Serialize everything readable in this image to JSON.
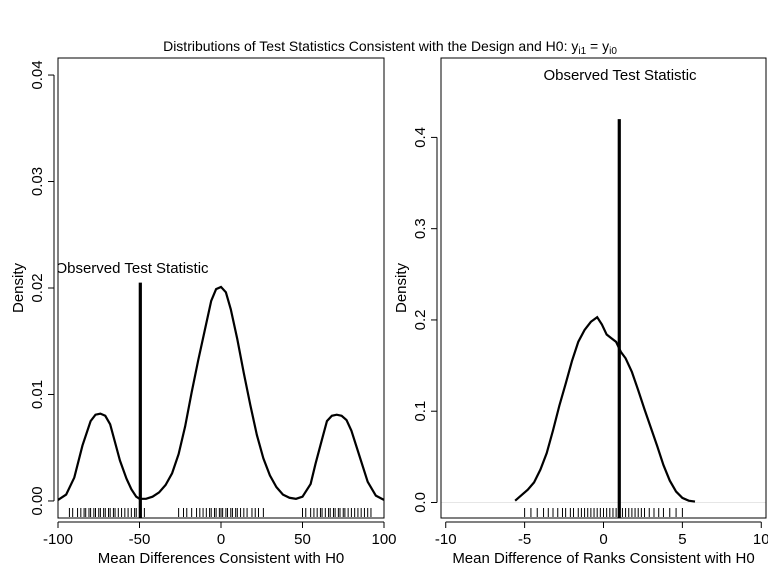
{
  "figure": {
    "title": "Distributions of Test Statistics Consistent with the Design and H0",
    "title_math": {
      "sep": ": y",
      "sub1": "i1",
      "eq": " = y",
      "sub2": "i0"
    }
  },
  "chart_data": [
    {
      "type": "line",
      "ylabel": "Density",
      "xlabel": "Mean Differences Consistent with H0",
      "xlim": [
        -100,
        100
      ],
      "ylim": [
        -0.0016,
        0.0416
      ],
      "xticks": [
        -100,
        -50,
        0,
        50,
        100
      ],
      "xtick_labels": [
        "-100",
        "-50",
        "0",
        "50",
        "100"
      ],
      "yticks": [
        0.0,
        0.01,
        0.02,
        0.03,
        0.04
      ],
      "ytick_labels": [
        "0.00",
        "0.01",
        "0.02",
        "0.03",
        "0.04"
      ],
      "grid": false,
      "series": [
        {
          "x": [
            -100,
            -95,
            -90,
            -85,
            -80,
            -77,
            -74,
            -71,
            -68,
            -65,
            -62,
            -58,
            -55,
            -52,
            -50,
            -46,
            -42,
            -38,
            -34,
            -30,
            -26,
            -22,
            -18,
            -14,
            -10,
            -6,
            -3,
            0,
            3,
            6,
            10,
            14,
            18,
            22,
            26,
            30,
            34,
            38,
            42,
            46,
            50,
            55,
            58,
            62,
            65,
            68,
            71,
            74,
            77,
            80,
            85,
            90,
            95,
            100
          ],
          "y": [
            0.0001,
            0.0006,
            0.0022,
            0.0052,
            0.0075,
            0.0081,
            0.0082,
            0.008,
            0.0072,
            0.0055,
            0.0038,
            0.0021,
            0.0011,
            0.0004,
            0.0002,
            0.0002,
            0.0004,
            0.0008,
            0.0015,
            0.0026,
            0.0044,
            0.007,
            0.0102,
            0.0132,
            0.016,
            0.0188,
            0.0199,
            0.0201,
            0.0196,
            0.018,
            0.0152,
            0.012,
            0.009,
            0.0062,
            0.004,
            0.0024,
            0.0013,
            0.0006,
            0.0003,
            0.0002,
            0.0004,
            0.0016,
            0.0035,
            0.0058,
            0.0075,
            0.008,
            0.0081,
            0.008,
            0.0076,
            0.0066,
            0.0042,
            0.0018,
            0.0005,
            0.0001
          ]
        }
      ],
      "observed": {
        "label": "Observed Test Statistic",
        "x": -49.5,
        "height": 0.0205
      },
      "rug": [
        -93,
        -91,
        -88,
        -86,
        -84,
        -83,
        -81,
        -80,
        -78,
        -77,
        -75,
        -74,
        -72,
        -71,
        -69,
        -68,
        -66,
        -65,
        -63,
        -61,
        -59,
        -57,
        -55,
        -53,
        -52,
        -50,
        -49,
        -47,
        -26,
        -23,
        -21,
        -18,
        -15,
        -13,
        -11,
        -9,
        -7,
        -6,
        -4,
        -3,
        -1,
        0,
        1,
        3,
        4,
        6,
        7,
        9,
        10,
        12,
        14,
        16,
        19,
        21,
        23,
        26,
        50,
        52,
        55,
        57,
        59,
        61,
        62,
        64,
        66,
        67,
        69,
        70,
        72,
        73,
        75,
        76,
        78,
        80,
        82,
        84,
        86,
        88,
        90,
        92
      ]
    },
    {
      "type": "line",
      "ylabel": "Density",
      "xlabel": "Mean Difference of Ranks Consistent with H0",
      "xlim": [
        -10.3,
        10.3
      ],
      "ylim": [
        -0.017,
        0.487
      ],
      "xticks": [
        -10,
        -5,
        0,
        5,
        10
      ],
      "xtick_labels": [
        "-10",
        "-5",
        "0",
        "5",
        "10"
      ],
      "yticks": [
        0.0,
        0.1,
        0.2,
        0.3,
        0.4
      ],
      "ytick_labels": [
        "0.0",
        "0.1",
        "0.2",
        "0.3",
        "0.4"
      ],
      "grid": false,
      "series": [
        {
          "x": [
            -5.6,
            -5.2,
            -4.8,
            -4.4,
            -4.0,
            -3.6,
            -3.2,
            -2.8,
            -2.4,
            -2.0,
            -1.6,
            -1.2,
            -0.8,
            -0.4,
            -0.1,
            0.2,
            0.5,
            0.8,
            1.1,
            1.4,
            1.8,
            2.2,
            2.6,
            3.0,
            3.4,
            3.8,
            4.2,
            4.6,
            5.0,
            5.4,
            5.8
          ],
          "y": [
            0.002,
            0.008,
            0.014,
            0.022,
            0.036,
            0.054,
            0.079,
            0.106,
            0.13,
            0.155,
            0.176,
            0.189,
            0.198,
            0.203,
            0.195,
            0.184,
            0.18,
            0.176,
            0.165,
            0.158,
            0.143,
            0.123,
            0.102,
            0.082,
            0.062,
            0.041,
            0.024,
            0.012,
            0.005,
            0.002,
            0.001
          ]
        }
      ],
      "observed": {
        "label": "Observed Test Statistic",
        "x": 1.0,
        "height": 0.42
      },
      "rug": [
        -5.0,
        -4.6,
        -4.2,
        -3.8,
        -3.5,
        -3.2,
        -2.9,
        -2.6,
        -2.4,
        -2.1,
        -1.9,
        -1.6,
        -1.4,
        -1.2,
        -1.0,
        -0.8,
        -0.6,
        -0.4,
        -0.2,
        0.0,
        0.2,
        0.4,
        0.6,
        0.8,
        1.0,
        1.2,
        1.4,
        1.6,
        1.8,
        2.0,
        2.2,
        2.4,
        2.6,
        2.9,
        3.2,
        3.5,
        3.8,
        4.2,
        4.6,
        5.0
      ]
    }
  ]
}
